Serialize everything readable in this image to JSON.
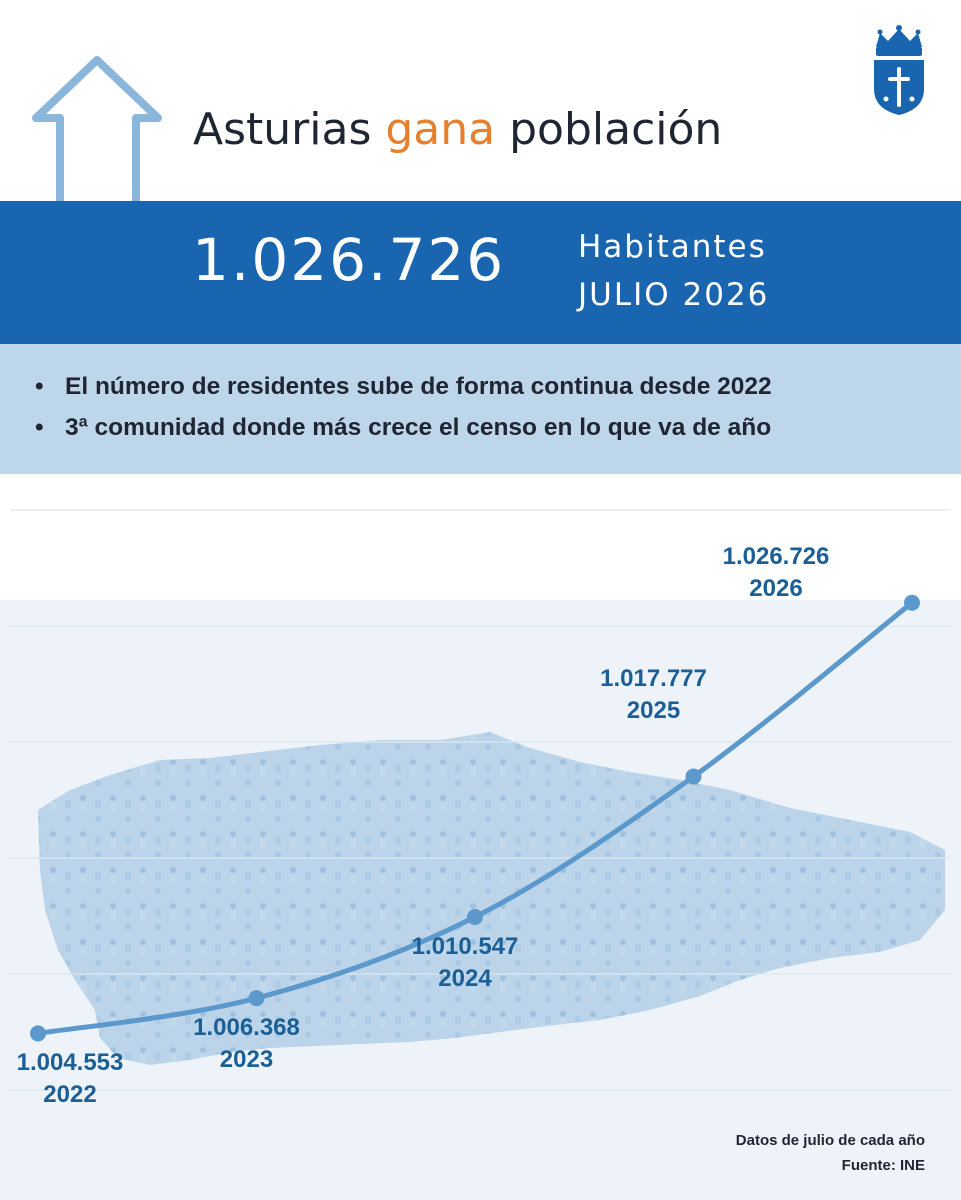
{
  "header": {
    "title_part1": "Asturias",
    "title_accent": "gana",
    "title_part2": "población",
    "headline_number": "1.026.726",
    "headline_unit": "Habitantes",
    "headline_period": "JULIO 2026"
  },
  "bullets": [
    "El número de residentes sube de forma continua desde 2022",
    "3ª comunidad donde más crece el censo en lo que va de año"
  ],
  "footer": {
    "note": "Datos de julio de cada año",
    "source": "Fuente: INE"
  },
  "icons": {
    "arrow": "up-arrow-icon",
    "crest": "asturias-coat-of-arms-icon",
    "background": "crowd-over-asturias-map-illustration"
  },
  "colors": {
    "accent": "#e6802f",
    "band": "#1a65b0",
    "bullet_bg": "#bdd6ea",
    "line": "#5b98cc",
    "label": "#1b5f96",
    "text": "#1f2533"
  },
  "chart_data": {
    "type": "line",
    "title": "",
    "xlabel": "",
    "ylabel": "",
    "x": [
      "2022",
      "2023",
      "2024",
      "2025",
      "2026"
    ],
    "values": [
      1004553,
      1006368,
      1010547,
      1017777,
      1026726
    ],
    "data_labels": [
      "1.004.553",
      "1.006.368",
      "1.010.547",
      "1.017.777",
      "1.026.726"
    ],
    "ylim": [
      1002000,
      1028000
    ],
    "grid": true,
    "legend": "none"
  }
}
